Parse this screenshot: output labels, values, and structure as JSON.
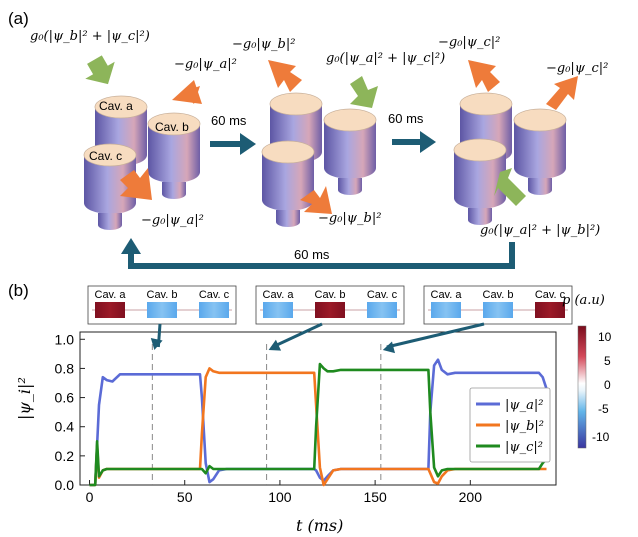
{
  "panel_a": {
    "label": "(a)",
    "stage1": {
      "gain": "g₀(|ψ_b|² + |ψ_c|²)",
      "loss_b": "−g₀|ψ_a|²",
      "loss_c": "−g₀|ψ_a|²",
      "cav_a": "Cav. a",
      "cav_b": "Cav. b",
      "cav_c": "Cav. c"
    },
    "stage2": {
      "loss_top": "−g₀|ψ_b|²",
      "gain": "g₀(|ψ_a|² + |ψ_c|²)",
      "loss_bottom": "−g₀|ψ_b|²"
    },
    "stage3": {
      "loss_top": "−g₀|ψ_c|²",
      "loss_right": "−g₀|ψ_c|²",
      "gain": "g₀(|ψ_a|² + |ψ_b|²)"
    },
    "arrow1_label": "60 ms",
    "arrow2_label": "60 ms",
    "return_label": "60 ms",
    "colors": {
      "cavity": "#7a70b5",
      "top": "#f7dcc0",
      "gain": "#8db55a",
      "loss": "#ee7b3a",
      "flow": "#1d5c74"
    }
  },
  "panel_b": {
    "label": "(b)",
    "insets": [
      {
        "labels": [
          "Cav. a",
          "Cav. b",
          "Cav. c"
        ],
        "hot": 0
      },
      {
        "labels": [
          "Cav. a",
          "Cav. b",
          "Cav. c"
        ],
        "hot": 1
      },
      {
        "labels": [
          "Cav. a",
          "Cav. b",
          "Cav. c"
        ],
        "hot": 2
      }
    ],
    "colorbar": {
      "title": "p (a.u)",
      "ticks": [
        "10",
        "5",
        "0",
        "-5",
        "-10"
      ]
    }
  },
  "chart_data": {
    "type": "line",
    "xlabel": "t (ms)",
    "ylabel": "|ψ_i|²",
    "xlim": [
      -5,
      245
    ],
    "ylim": [
      0,
      1.05
    ],
    "xticks": [
      "0",
      "50",
      "100",
      "150",
      "200"
    ],
    "yticks": [
      "0.0",
      "0.2",
      "0.4",
      "0.6",
      "0.8",
      "1.0"
    ],
    "markers_t": [
      33,
      93,
      153
    ],
    "legend_position": "right-center",
    "series": [
      {
        "name": "|ψ_a|²",
        "color": "#5b6bd6",
        "x": [
          0,
          3,
          5,
          7,
          9,
          12,
          16,
          20,
          30,
          58,
          59,
          61,
          63,
          65,
          68,
          72,
          80,
          118,
          119,
          121,
          123,
          125,
          128,
          132,
          140,
          178,
          179,
          181,
          183,
          185,
          188,
          192,
          200,
          236,
          238,
          240
        ],
        "y": [
          0,
          0,
          0.55,
          0.74,
          0.72,
          0.71,
          0.76,
          0.76,
          0.76,
          0.76,
          0.6,
          0.15,
          0.02,
          0.04,
          0.1,
          0.11,
          0.11,
          0.11,
          0.1,
          0.05,
          0.03,
          0.06,
          0.1,
          0.11,
          0.11,
          0.11,
          0.5,
          0.82,
          0.86,
          0.79,
          0.76,
          0.77,
          0.77,
          0.77,
          0.74,
          0.66
        ]
      },
      {
        "name": "|ψ_b|²",
        "color": "#f2761f",
        "x": [
          0,
          3,
          4,
          5,
          7,
          9,
          12,
          16,
          30,
          58,
          59,
          61,
          63,
          65,
          68,
          72,
          80,
          118,
          119,
          121,
          123,
          125,
          128,
          132,
          140,
          178,
          179,
          181,
          183,
          185,
          188,
          192,
          200,
          236,
          238,
          240
        ],
        "y": [
          0,
          0,
          0.27,
          0.05,
          0.1,
          0.11,
          0.11,
          0.11,
          0.11,
          0.11,
          0.35,
          0.74,
          0.8,
          0.78,
          0.77,
          0.77,
          0.77,
          0.77,
          0.55,
          0.12,
          -0.02,
          0.04,
          0.1,
          0.11,
          0.11,
          0.11,
          0.08,
          0.02,
          0.01,
          0.06,
          0.1,
          0.11,
          0.11,
          0.11,
          0.11,
          0.11
        ]
      },
      {
        "name": "|ψ_c|²",
        "color": "#1f8a1f",
        "x": [
          0,
          3,
          4,
          5,
          7,
          9,
          12,
          16,
          30,
          58,
          59,
          61,
          63,
          65,
          68,
          72,
          80,
          118,
          119,
          121,
          123,
          125,
          128,
          132,
          140,
          178,
          179,
          181,
          183,
          185,
          188,
          192,
          200,
          236,
          238,
          240
        ],
        "y": [
          0,
          0,
          0.3,
          0.06,
          0.1,
          0.11,
          0.11,
          0.11,
          0.11,
          0.11,
          0.11,
          0.08,
          0.13,
          0.11,
          0.11,
          0.11,
          0.11,
          0.11,
          0.4,
          0.83,
          0.8,
          0.78,
          0.78,
          0.79,
          0.79,
          0.79,
          0.5,
          0.12,
          0.06,
          0.1,
          0.11,
          0.11,
          0.11,
          0.11,
          0.15,
          0.18
        ]
      }
    ]
  }
}
